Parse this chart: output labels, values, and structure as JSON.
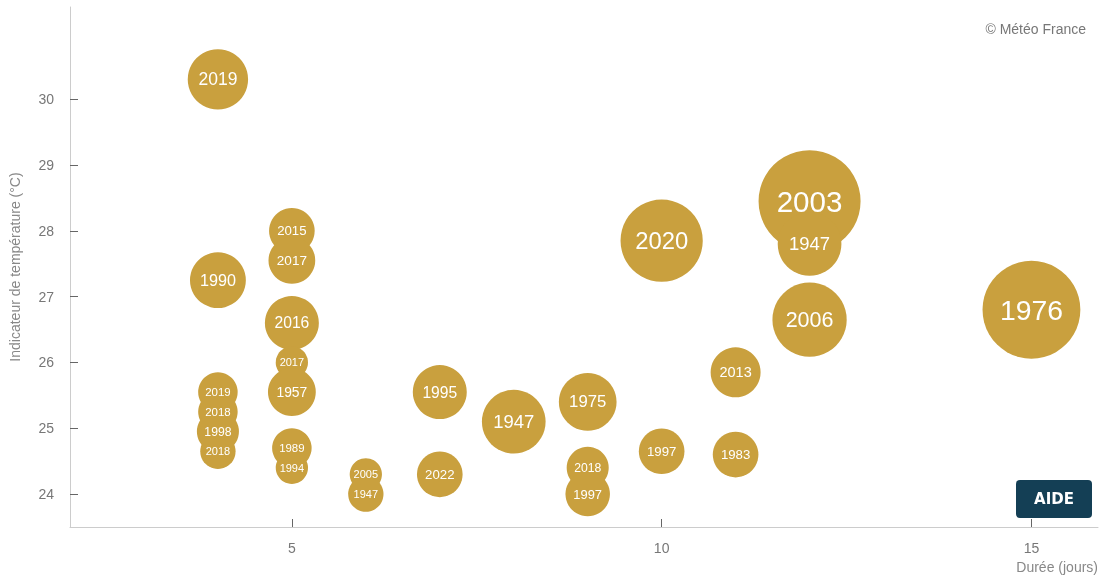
{
  "chart_data": {
    "type": "bubble",
    "xlabel": "Durée (jours)",
    "ylabel": "Indicateur de température (°C)",
    "annotations": [
      "© Météo France",
      "AIDE"
    ],
    "series": [
      {
        "name": "2019",
        "x": [
          4
        ],
        "values": [
          30.3
        ],
        "sizes": [
          0.35
        ]
      },
      {
        "name": "1990",
        "x": [
          4
        ],
        "values": [
          27.25
        ],
        "sizes": [
          0.3
        ]
      },
      {
        "name": "2019",
        "x": [
          4
        ],
        "values": [
          25.55
        ],
        "sizes": [
          0.15
        ]
      },
      {
        "name": "2018",
        "x": [
          4
        ],
        "values": [
          25.25
        ],
        "sizes": [
          0.15
        ]
      },
      {
        "name": "1998",
        "x": [
          4
        ],
        "values": [
          24.95
        ],
        "sizes": [
          0.17
        ]
      },
      {
        "name": "2018",
        "x": [
          4
        ],
        "values": [
          24.65
        ],
        "sizes": [
          0.12
        ]
      },
      {
        "name": "2015",
        "x": [
          5
        ],
        "values": [
          28.0
        ],
        "sizes": [
          0.2
        ]
      },
      {
        "name": "2017",
        "x": [
          5
        ],
        "values": [
          27.55
        ],
        "sizes": [
          0.21
        ]
      },
      {
        "name": "2016",
        "x": [
          5
        ],
        "values": [
          26.6
        ],
        "sizes": [
          0.28
        ]
      },
      {
        "name": "2017",
        "x": [
          5
        ],
        "values": [
          26.0
        ],
        "sizes": [
          0.1
        ]
      },
      {
        "name": "1957",
        "x": [
          5
        ],
        "values": [
          25.55
        ],
        "sizes": [
          0.22
        ]
      },
      {
        "name": "1989",
        "x": [
          5
        ],
        "values": [
          24.7
        ],
        "sizes": [
          0.15
        ]
      },
      {
        "name": "1994",
        "x": [
          5
        ],
        "values": [
          24.4
        ],
        "sizes": [
          0.1
        ]
      },
      {
        "name": "2005",
        "x": [
          6
        ],
        "values": [
          24.3
        ],
        "sizes": [
          0.1
        ]
      },
      {
        "name": "1947",
        "x": [
          6
        ],
        "values": [
          24.0
        ],
        "sizes": [
          0.12
        ]
      },
      {
        "name": "1995",
        "x": [
          7
        ],
        "values": [
          25.55
        ],
        "sizes": [
          0.28
        ]
      },
      {
        "name": "2022",
        "x": [
          7
        ],
        "values": [
          24.3
        ],
        "sizes": [
          0.2
        ]
      },
      {
        "name": "1947",
        "x": [
          8
        ],
        "values": [
          25.1
        ],
        "sizes": [
          0.39
        ]
      },
      {
        "name": "1975",
        "x": [
          9
        ],
        "values": [
          25.4
        ],
        "sizes": [
          0.32
        ]
      },
      {
        "name": "2018",
        "x": [
          9
        ],
        "values": [
          24.4
        ],
        "sizes": [
          0.17
        ]
      },
      {
        "name": "1997",
        "x": [
          9
        ],
        "values": [
          24.0
        ],
        "sizes": [
          0.19
        ]
      },
      {
        "name": "2020",
        "x": [
          10
        ],
        "values": [
          27.85
        ],
        "sizes": [
          0.65
        ]
      },
      {
        "name": "1997",
        "x": [
          10
        ],
        "values": [
          24.65
        ],
        "sizes": [
          0.2
        ]
      },
      {
        "name": "2013",
        "x": [
          11
        ],
        "values": [
          25.85
        ],
        "sizes": [
          0.24
        ]
      },
      {
        "name": "1983",
        "x": [
          11
        ],
        "values": [
          24.6
        ],
        "sizes": [
          0.2
        ]
      },
      {
        "name": "2003",
        "x": [
          12
        ],
        "values": [
          28.45
        ],
        "sizes": [
          1
        ]
      },
      {
        "name": "1947",
        "x": [
          12
        ],
        "values": [
          27.8
        ],
        "sizes": [
          0.39
        ]
      },
      {
        "name": "2006",
        "x": [
          12
        ],
        "values": [
          26.65
        ],
        "sizes": [
          0.53
        ]
      },
      {
        "name": "1976",
        "x": [
          15
        ],
        "values": [
          26.8
        ],
        "sizes": [
          0.92
        ]
      }
    ],
    "color": "#c9a03e",
    "xlim": [
      2,
      15.9
    ],
    "xticks": [
      5,
      10,
      15
    ],
    "ylim": [
      23.5,
      31.4
    ],
    "yticks": [
      24,
      25,
      26,
      27,
      28,
      29,
      30
    ],
    "grid": false
  }
}
